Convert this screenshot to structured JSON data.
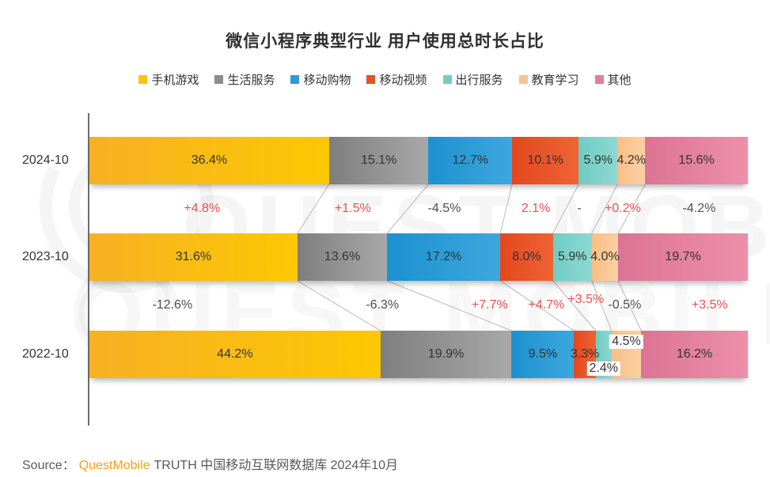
{
  "title": "微信小程序典型行业 用户使用总时长占比",
  "watermark": {
    "text": "QUEST MOBILE"
  },
  "source": {
    "prefix": "Source：",
    "brand": "QuestMobile",
    "suffix": "TRUTH 中国移动互联网数据库 2024年10月"
  },
  "chart_data": {
    "type": "bar",
    "stacked": true,
    "orientation": "horizontal",
    "unit": "%",
    "title": "微信小程序典型行业 用户使用总时长占比",
    "categories": [
      "2024-10",
      "2023-10",
      "2022-10"
    ],
    "series": [
      {
        "name": "手机游戏",
        "swatch": "#fbc30d",
        "grad": [
          "#f7b123",
          "#fcc803"
        ],
        "values": [
          36.4,
          31.6,
          44.2
        ]
      },
      {
        "name": "生活服务",
        "swatch": "#8c8c8c",
        "grad": [
          "#7e7e7e",
          "#a8a8a8"
        ],
        "values": [
          15.1,
          13.6,
          19.9
        ]
      },
      {
        "name": "移动购物",
        "swatch": "#2e9bd6",
        "grad": [
          "#1c91d0",
          "#3da7dd"
        ],
        "values": [
          12.7,
          17.2,
          9.5
        ]
      },
      {
        "name": "移动视频",
        "swatch": "#e4512a",
        "grad": [
          "#e3481f",
          "#ef6334"
        ],
        "values": [
          10.1,
          8.0,
          3.3
        ]
      },
      {
        "name": "出行服务",
        "swatch": "#72cec5",
        "grad": [
          "#6fcdc4",
          "#8dd8d1"
        ],
        "values": [
          5.9,
          5.9,
          2.4
        ]
      },
      {
        "name": "教育学习",
        "swatch": "#f6c491",
        "grad": [
          "#f9be85",
          "#fbd1a4"
        ],
        "values": [
          4.2,
          4.0,
          4.5
        ]
      },
      {
        "name": "其他",
        "swatch": "#e07e9d",
        "grad": [
          "#dc7394",
          "#ec90aa"
        ],
        "values": [
          15.6,
          19.7,
          16.2
        ]
      }
    ],
    "value_suffix": "%",
    "label_overrides": [
      {
        "row": 2,
        "series": 4,
        "dy": 18,
        "bg": true
      },
      {
        "row": 2,
        "series": 5,
        "dy": -16,
        "bg": true
      }
    ],
    "change_rows": [
      {
        "between": [
          "2024-10",
          "2023-10"
        ],
        "labels": [
          {
            "text": "+4.8%",
            "tone": "up",
            "x_pct": 17.1
          },
          {
            "text": "+1.5%",
            "tone": "up",
            "x_pct": 40.0
          },
          {
            "text": "-4.5%",
            "tone": "down",
            "x_pct": 53.9
          },
          {
            "text": "2.1%",
            "tone": "up",
            "x_pct": 67.8
          },
          {
            "text": "-",
            "tone": "down",
            "x_pct": 74.4
          },
          {
            "text": "+0.2%",
            "tone": "up",
            "x_pct": 81.0
          },
          {
            "text": "-4.2%",
            "tone": "down",
            "x_pct": 92.6
          }
        ]
      },
      {
        "between": [
          "2023-10",
          "2022-10"
        ],
        "labels": [
          {
            "text": "-12.6%",
            "tone": "down",
            "x_pct": 12.6
          },
          {
            "text": "-6.3%",
            "tone": "down",
            "x_pct": 44.5
          },
          {
            "text": "+7.7%",
            "tone": "up",
            "x_pct": 60.8
          },
          {
            "text": "+4.7%",
            "tone": "up",
            "x_pct": 69.4
          },
          {
            "text": "+3.5%",
            "tone": "up",
            "x_pct": 75.4,
            "dy": -7
          },
          {
            "text": "-0.5%",
            "tone": "down",
            "x_pct": 81.3
          },
          {
            "text": "+3.5%",
            "tone": "up",
            "x_pct": 94.2
          }
        ]
      }
    ],
    "colors": {
      "increase": "#e9524e",
      "decrease": "#4f4f4f"
    },
    "legend_position": "top",
    "xlim": [
      0,
      100
    ],
    "grid": false
  }
}
